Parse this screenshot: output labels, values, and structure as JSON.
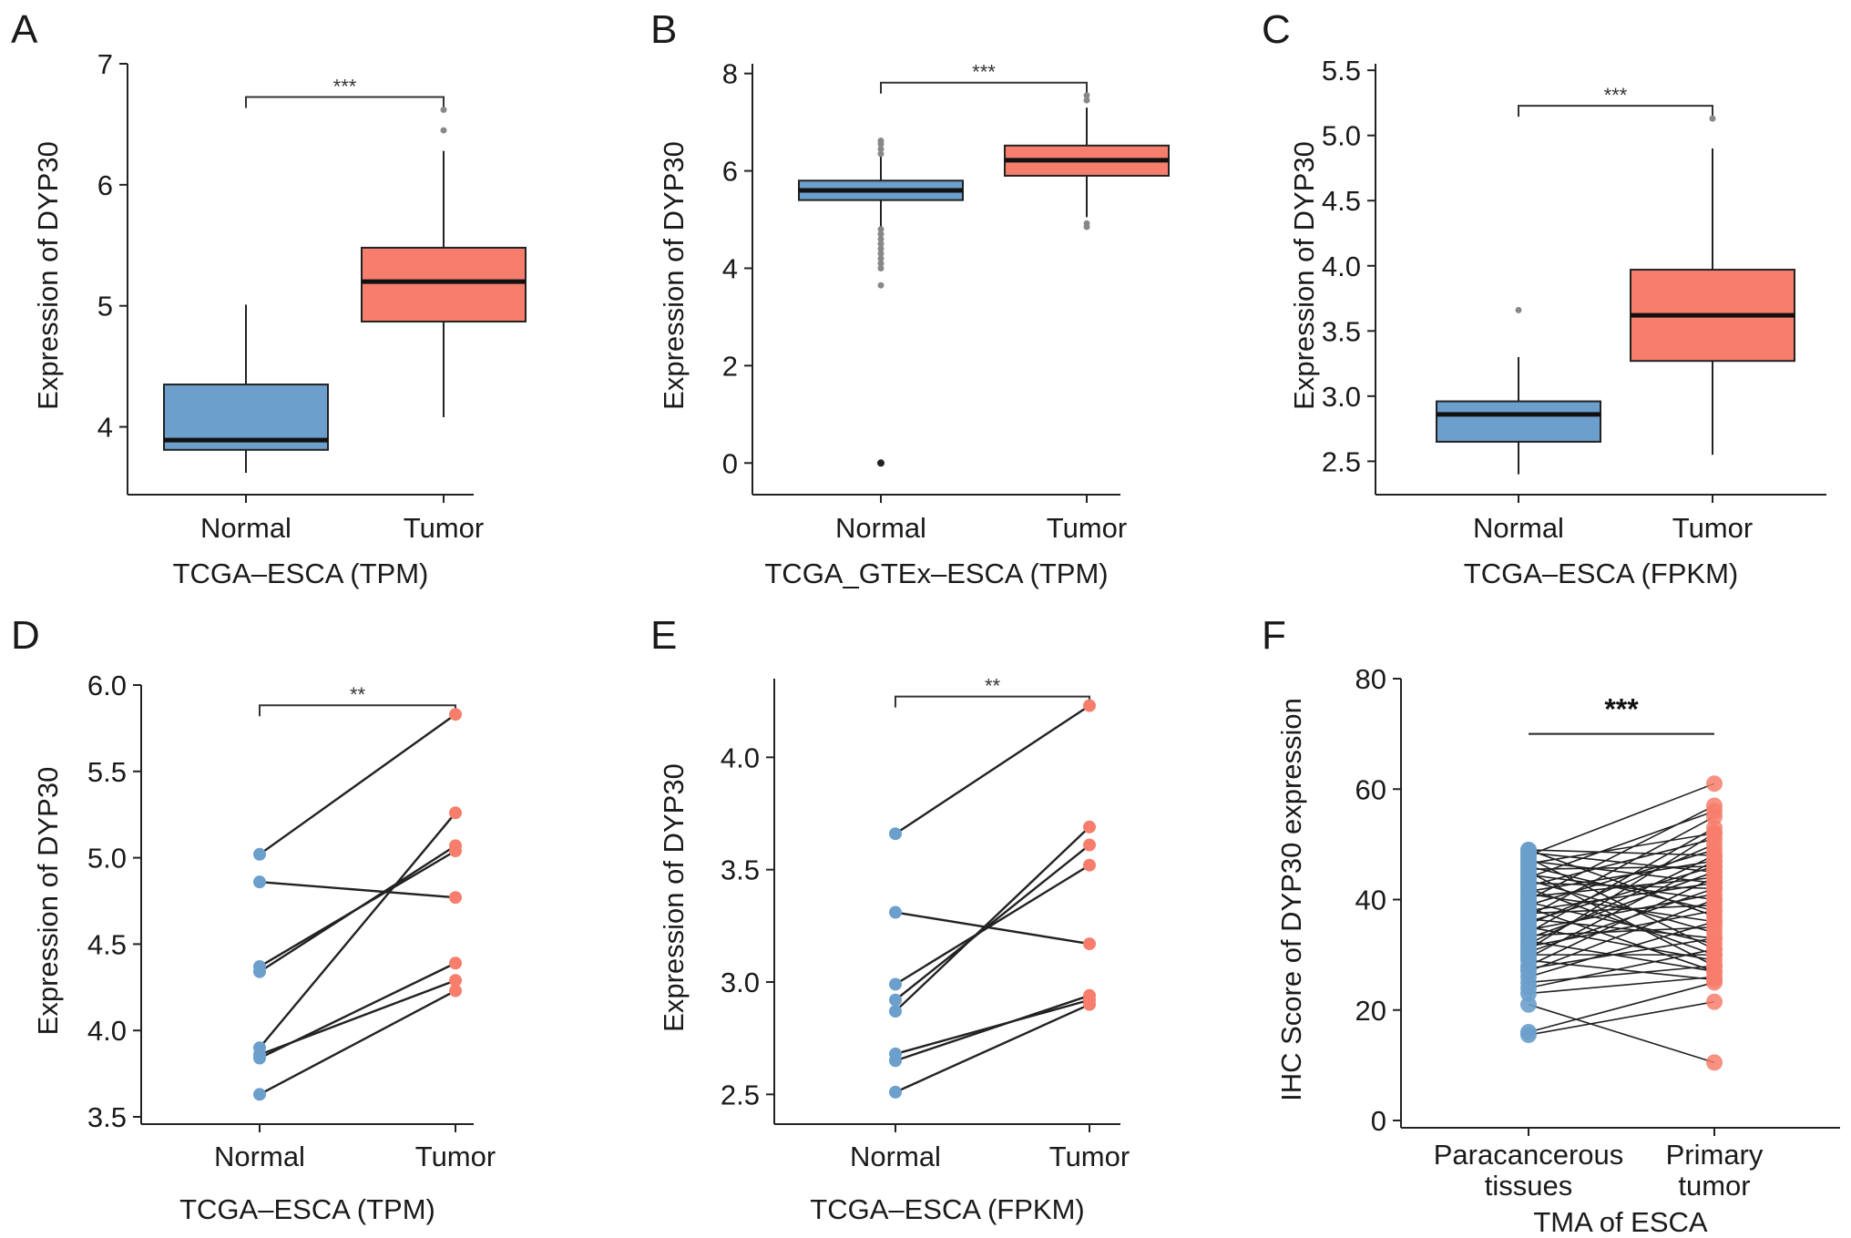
{
  "chart_data": [
    {
      "panel": "A",
      "type": "box",
      "title": "",
      "ylabel": "Expression of DYP30",
      "xlabel": "TCGA–ESCA (TPM)",
      "categories": [
        "Normal",
        "Tumor"
      ],
      "yticks": [
        "4",
        "5",
        "6",
        "7"
      ],
      "ytick_values": [
        4,
        5,
        6,
        7
      ],
      "ylim": [
        3.5,
        7.0
      ],
      "boxes": [
        {
          "name": "Normal",
          "whisker_low": 3.62,
          "q1": 3.81,
          "median": 3.89,
          "q3": 4.35,
          "whisker_high": 5.01,
          "outliers": [],
          "color": "#6C9FCB"
        },
        {
          "name": "Tumor",
          "whisker_low": 4.08,
          "q1": 4.87,
          "median": 5.2,
          "q3": 5.48,
          "whisker_high": 6.28,
          "outliers": [
            6.45,
            6.62
          ],
          "color": "#F77E6C"
        }
      ],
      "significance": "***"
    },
    {
      "panel": "B",
      "type": "box",
      "title": "",
      "ylabel": "Expression of DYP30",
      "xlabel": "TCGA_GTEx–ESCA (TPM)",
      "categories": [
        "Normal",
        "Tumor"
      ],
      "yticks": [
        "0",
        "2",
        "4",
        "6",
        "8"
      ],
      "ytick_values": [
        0,
        2,
        4,
        6,
        8
      ],
      "ylim": [
        -0.5,
        8.2
      ],
      "boxes": [
        {
          "name": "Normal",
          "whisker_low": 4.85,
          "q1": 5.4,
          "median": 5.6,
          "q3": 5.8,
          "whisker_high": 6.3,
          "outliers": [
            6.35,
            6.45,
            6.55,
            6.62,
            4.8,
            4.7,
            4.6,
            4.5,
            4.4,
            4.3,
            4.2,
            4.1,
            4.0,
            3.65,
            0.0
          ],
          "color": "#6C9FCB"
        },
        {
          "name": "Tumor",
          "whisker_low": 5.05,
          "q1": 5.9,
          "median": 6.22,
          "q3": 6.52,
          "whisker_high": 7.3,
          "outliers": [
            4.85,
            4.92,
            7.45,
            7.55
          ],
          "color": "#F77E6C"
        }
      ],
      "significance": "***"
    },
    {
      "panel": "C",
      "type": "box",
      "title": "",
      "ylabel": "Expression of DYP30",
      "xlabel": "TCGA–ESCA (FPKM)",
      "categories": [
        "Normal",
        "Tumor"
      ],
      "yticks": [
        "2.5",
        "3.0",
        "3.5",
        "4.0",
        "4.5",
        "5.0",
        "5.5"
      ],
      "ytick_values": [
        2.5,
        3.0,
        3.5,
        4.0,
        4.5,
        5.0,
        5.5
      ],
      "ylim": [
        2.3,
        5.55
      ],
      "boxes": [
        {
          "name": "Normal",
          "whisker_low": 2.4,
          "q1": 2.65,
          "median": 2.86,
          "q3": 2.96,
          "whisker_high": 3.3,
          "outliers": [
            3.66
          ],
          "color": "#6C9FCB"
        },
        {
          "name": "Tumor",
          "whisker_low": 2.55,
          "q1": 3.27,
          "median": 3.62,
          "q3": 3.97,
          "whisker_high": 4.9,
          "outliers": [
            5.13
          ],
          "color": "#F77E6C"
        }
      ],
      "significance": "***"
    },
    {
      "panel": "D",
      "type": "paired_dot",
      "title": "",
      "ylabel": "Expression of DYP30",
      "xlabel": "TCGA–ESCA (TPM)",
      "categories": [
        "Normal",
        "Tumor"
      ],
      "yticks": [
        "3.5",
        "4.0",
        "4.5",
        "5.0",
        "5.5",
        "6.0"
      ],
      "ytick_values": [
        3.5,
        4.0,
        4.5,
        5.0,
        5.5,
        6.0
      ],
      "ylim": [
        3.5,
        6.0
      ],
      "pairs": [
        [
          5.02,
          5.83
        ],
        [
          4.86,
          4.77
        ],
        [
          4.37,
          5.04
        ],
        [
          4.34,
          5.07
        ],
        [
          3.9,
          5.26
        ],
        [
          3.86,
          4.29
        ],
        [
          3.84,
          4.39
        ],
        [
          3.63,
          4.23
        ]
      ],
      "significance": "**"
    },
    {
      "panel": "E",
      "type": "paired_dot",
      "title": "",
      "ylabel": "Expression of DYP30",
      "xlabel": "TCGA–ESCA (FPKM)",
      "categories": [
        "Normal",
        "Tumor"
      ],
      "yticks": [
        "2.5",
        "3.0",
        "3.5",
        "4.0"
      ],
      "ytick_values": [
        2.5,
        3.0,
        3.5,
        4.0
      ],
      "ylim": [
        2.4,
        4.35
      ],
      "pairs": [
        [
          3.66,
          4.23
        ],
        [
          3.31,
          3.17
        ],
        [
          2.99,
          3.52
        ],
        [
          2.92,
          3.61
        ],
        [
          2.87,
          3.69
        ],
        [
          2.68,
          2.92
        ],
        [
          2.65,
          2.94
        ],
        [
          2.51,
          2.9
        ]
      ],
      "significance": "**"
    },
    {
      "panel": "F",
      "type": "paired_dot",
      "title": "",
      "ylabel": "IHC Score of DYP30 expression",
      "xlabel": "TMA of ESCA",
      "categories": [
        "Paracancerous\ntissues",
        "Primary\ntumor"
      ],
      "yticks": [
        "0",
        "20",
        "40",
        "60",
        "80"
      ],
      "ytick_values": [
        0,
        20,
        40,
        60,
        80
      ],
      "ylim": [
        0,
        80
      ],
      "pairs": [
        [
          15.5,
          21.5
        ],
        [
          16,
          25
        ],
        [
          21,
          10.5
        ],
        [
          23,
          26
        ],
        [
          24,
          31
        ],
        [
          25,
          28
        ],
        [
          26,
          36
        ],
        [
          27,
          40
        ],
        [
          27.5,
          33
        ],
        [
          28,
          44
        ],
        [
          29,
          25.5
        ],
        [
          29.5,
          47
        ],
        [
          30,
          30
        ],
        [
          30.5,
          42
        ],
        [
          31,
          52
        ],
        [
          31.5,
          38
        ],
        [
          32,
          48
        ],
        [
          32.5,
          27
        ],
        [
          33,
          45
        ],
        [
          33.5,
          35
        ],
        [
          34,
          53
        ],
        [
          34.5,
          41
        ],
        [
          35,
          29
        ],
        [
          35.5,
          50
        ],
        [
          36,
          46
        ],
        [
          36.5,
          33
        ],
        [
          37,
          55
        ],
        [
          37.5,
          39
        ],
        [
          38,
          43
        ],
        [
          38.5,
          27
        ],
        [
          39,
          49
        ],
        [
          39.5,
          32
        ],
        [
          40,
          57
        ],
        [
          40.5,
          44
        ],
        [
          41,
          36
        ],
        [
          41.5,
          47
        ],
        [
          42,
          30
        ],
        [
          42.5,
          51
        ],
        [
          43,
          42
        ],
        [
          43.5,
          34
        ],
        [
          44,
          56
        ],
        [
          44.5,
          40
        ],
        [
          45,
          28
        ],
        [
          45.5,
          46
        ],
        [
          46,
          38
        ],
        [
          46.5,
          52
        ],
        [
          47,
          43
        ],
        [
          47.5,
          31
        ],
        [
          48,
          61
        ],
        [
          48.5,
          45
        ],
        [
          49,
          37
        ],
        [
          49,
          48
        ]
      ],
      "significance": "***"
    }
  ]
}
